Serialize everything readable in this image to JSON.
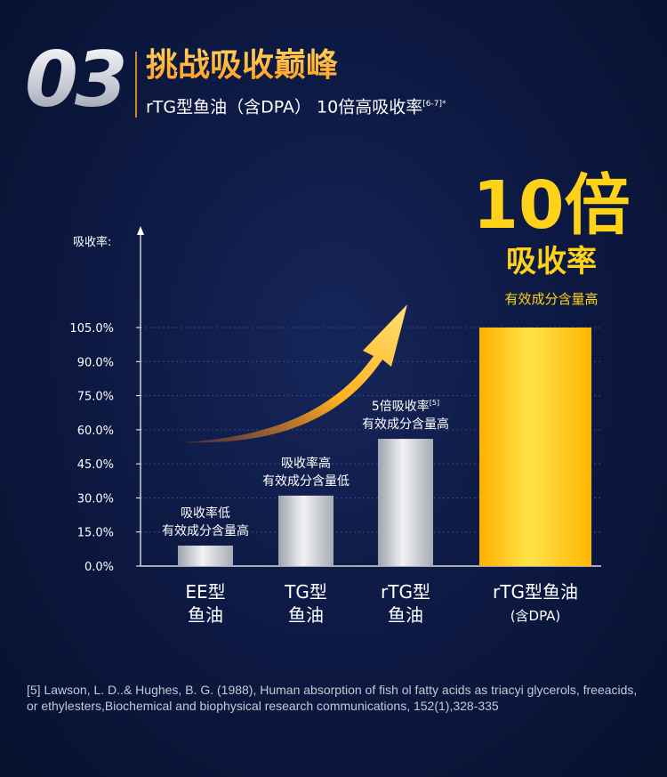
{
  "header": {
    "number": "03",
    "title": "挑战吸收巅峰",
    "subtitle": "rTG型鱼油（含DPA） 10倍高吸收率",
    "subtitle_sup": "[6-7]*"
  },
  "highlight": {
    "big": "10倍",
    "sub": "吸收率",
    "sub2": "有效成分含量高"
  },
  "colors": {
    "accent": "#ffd21a",
    "silver_bar": "#c9cdd4",
    "gold_bar": "#ffc21a",
    "background": "#0d1a44"
  },
  "chart_data": {
    "type": "bar",
    "ylabel": "吸收率:",
    "yticks": [
      "0.0%",
      "15.0%",
      "30.0%",
      "45.0%",
      "60.0%",
      "75.0%",
      "90.0%",
      "105.0%"
    ],
    "ytick_values": [
      0,
      15,
      30,
      45,
      60,
      75,
      90,
      105
    ],
    "ylim": [
      0,
      105
    ],
    "categories": [
      {
        "line1": "EE型",
        "line2": "鱼油",
        "value": 9,
        "note1": "吸收率低",
        "note2": "有效成分含量高",
        "note_sup": ""
      },
      {
        "line1": "TG型",
        "line2": "鱼油",
        "value": 31,
        "note1": "吸收率高",
        "note2": "有效成分含量低",
        "note_sup": ""
      },
      {
        "line1": "rTG型",
        "line2": "鱼油",
        "value": 56,
        "note1": "5倍吸收率",
        "note2": "有效成分含量高",
        "note_sup": "[5]"
      },
      {
        "line1": "rTG型鱼油",
        "line2": "(含DPA)",
        "value": 105,
        "note1": "",
        "note2": "",
        "note_sup": ""
      }
    ]
  },
  "reference": "[5] Lawson, L. D..& Hughes, B. G. (1988), Human absorption of fish ol fatty acids as triacyi glycerols, freeacids, or ethylesters,Biochemical and biophysical research communications, 152(1),328-335"
}
